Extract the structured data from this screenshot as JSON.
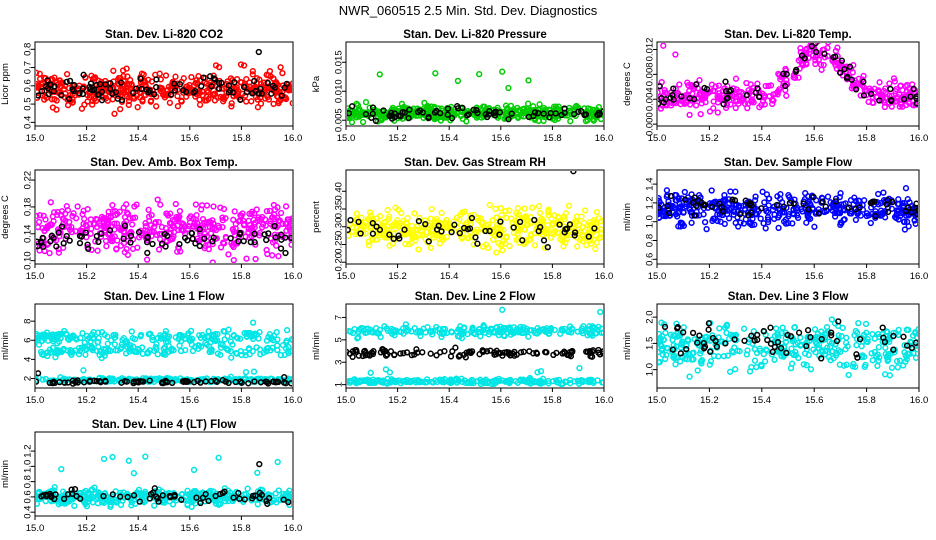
{
  "title": "NWR_060515  2.5 Min. Std. Dev. Diagnostics",
  "chart_data": [
    {
      "type": "scatter",
      "title": "Stan. Dev. Li-820 CO2",
      "ylabel": "Licor ppm",
      "xlim": [
        15.0,
        16.0
      ],
      "ylim": [
        0.38,
        0.84
      ],
      "x_ticks": [
        "15.0",
        "15.2",
        "15.4",
        "15.6",
        "15.8",
        "16.0"
      ],
      "y_ticks": [
        "0.4",
        "0.5",
        "0.6",
        "0.7",
        "0.8"
      ],
      "y_tick_values": [
        0.4,
        0.5,
        0.6,
        0.7,
        0.8
      ],
      "color": "#ff0000",
      "series": [
        {
          "name": "main",
          "center": 0.58,
          "spread": 0.07
        },
        {
          "name": "black",
          "center": 0.58,
          "spread": 0.05
        }
      ]
    },
    {
      "type": "scatter",
      "title": "Stan. Dev. Li-820 Pressure",
      "ylabel": "kPa",
      "xlim": [
        15.0,
        16.0
      ],
      "ylim": [
        0.004,
        0.0185
      ],
      "x_ticks": [
        "15.0",
        "15.2",
        "15.4",
        "15.6",
        "15.8",
        "16.0"
      ],
      "y_ticks": [
        "0.005",
        "0.010",
        "0.015"
      ],
      "y_tick_values": [
        0.005,
        0.01,
        0.015
      ],
      "color": "#00cc00",
      "series": [
        {
          "name": "main",
          "center": 0.0062,
          "spread": 0.0009
        },
        {
          "name": "black",
          "center": 0.0062,
          "spread": 0.0008
        }
      ]
    },
    {
      "type": "scatter",
      "title": "Stan. Dev. Li-820 Temp.",
      "ylabel": "degrees C",
      "xlim": [
        15.0,
        16.0
      ],
      "ylim": [
        -0.0003,
        0.0132
      ],
      "x_ticks": [
        "15.0",
        "15.2",
        "15.4",
        "15.6",
        "15.8",
        "16.0"
      ],
      "y_ticks": [
        "0.000",
        "0.004",
        "0.008",
        "0.012"
      ],
      "y_tick_values": [
        0.0,
        0.004,
        0.008,
        0.012
      ],
      "color": "#ff00ff",
      "series": [
        {
          "name": "main",
          "center": 0.0045,
          "spread": 0.0015,
          "peak": 0.0075
        },
        {
          "name": "black",
          "center": 0.0045,
          "spread": 0.0012,
          "peak": 0.0075
        }
      ]
    },
    {
      "type": "scatter",
      "title": "Stan. Dev. Amb. Box Temp.",
      "ylabel": "degrees C",
      "xlim": [
        15.0,
        16.0
      ],
      "ylim": [
        0.095,
        0.235
      ],
      "x_ticks": [
        "15.0",
        "15.2",
        "15.4",
        "15.6",
        "15.8",
        "16.0"
      ],
      "y_ticks": [
        "0.10",
        "0.14",
        "0.18",
        "0.22"
      ],
      "y_tick_values": [
        0.1,
        0.14,
        0.18,
        0.22
      ],
      "color": "#ff00ff",
      "series": [
        {
          "name": "main",
          "center": 0.148,
          "spread": 0.025
        },
        {
          "name": "black",
          "center": 0.132,
          "spread": 0.012
        }
      ]
    },
    {
      "type": "scatter",
      "title": "Stan. Dev. Gas Stream RH",
      "ylabel": "percent",
      "xlim": [
        15.0,
        16.0
      ],
      "ylim": [
        0.195,
        0.46
      ],
      "x_ticks": [
        "15.0",
        "15.2",
        "15.4",
        "15.6",
        "15.8",
        "16.0"
      ],
      "y_ticks": [
        "0.20",
        "0.25",
        "0.30",
        "0.35",
        "0.40"
      ],
      "y_tick_values": [
        0.2,
        0.25,
        0.3,
        0.35,
        0.4
      ],
      "color": "#ffff00",
      "series": [
        {
          "name": "main",
          "center": 0.295,
          "spread": 0.035
        },
        {
          "name": "black",
          "center": 0.29,
          "spread": 0.025
        }
      ]
    },
    {
      "type": "scatter",
      "title": "Stan. Dev. Sample Flow",
      "ylabel": "ml/min",
      "xlim": [
        15.0,
        16.0
      ],
      "ylim": [
        0.55,
        1.55
      ],
      "x_ticks": [
        "15.0",
        "15.2",
        "15.4",
        "15.6",
        "15.8",
        "16.0"
      ],
      "y_ticks": [
        "0.6",
        "0.8",
        "1.0",
        "1.2",
        "1.4"
      ],
      "y_tick_values": [
        0.6,
        0.8,
        1.0,
        1.2,
        1.4
      ],
      "color": "#0000ff",
      "series": [
        {
          "name": "main",
          "center": 1.13,
          "spread": 0.12
        },
        {
          "name": "black",
          "center": 1.18,
          "spread": 0.08
        }
      ]
    },
    {
      "type": "scatter",
      "title": "Stan. Dev. Line 1 Flow",
      "ylabel": "ml/min",
      "xlim": [
        15.0,
        16.0
      ],
      "ylim": [
        1.0,
        9.8
      ],
      "x_ticks": [
        "15.0",
        "15.2",
        "15.4",
        "15.6",
        "15.8",
        "16.0"
      ],
      "y_ticks": [
        "2",
        "4",
        "6",
        "8"
      ],
      "y_tick_values": [
        2,
        4,
        6,
        8
      ],
      "color": "#00e5e5",
      "series": [
        {
          "name": "band-high",
          "center": 6.3,
          "spread": 0.45
        },
        {
          "name": "band-mid",
          "center": 4.9,
          "spread": 0.45
        },
        {
          "name": "band-low",
          "center": 1.85,
          "spread": 0.15
        },
        {
          "name": "black",
          "center": 1.65,
          "spread": 0.12
        }
      ]
    },
    {
      "type": "scatter",
      "title": "Stan. Dev. Line 2 Flow",
      "ylabel": "ml/min",
      "xlim": [
        15.0,
        16.0
      ],
      "ylim": [
        0.7,
        8.2
      ],
      "x_ticks": [
        "15.0",
        "15.2",
        "15.4",
        "15.6",
        "15.8",
        "16.0"
      ],
      "y_ticks": [
        "1",
        "3",
        "5",
        "7"
      ],
      "y_tick_values": [
        1,
        3,
        5,
        7
      ],
      "color": "#00e5e5",
      "series": [
        {
          "name": "band-high",
          "center": 5.8,
          "spread": 0.35
        },
        {
          "name": "band-low",
          "center": 1.3,
          "spread": 0.15
        },
        {
          "name": "black",
          "center": 3.8,
          "spread": 0.25
        }
      ]
    },
    {
      "type": "scatter",
      "title": "Stan. Dev. Line 3 Flow",
      "ylabel": "ml/min",
      "xlim": [
        15.0,
        16.0
      ],
      "ylim": [
        0.65,
        2.25
      ],
      "x_ticks": [
        "15.0",
        "15.2",
        "15.4",
        "15.6",
        "15.8",
        "16.0"
      ],
      "y_ticks": [
        "1.0",
        "1.5",
        "2.0"
      ],
      "y_tick_values": [
        1.0,
        1.5,
        2.0
      ],
      "color": "#00e5e5",
      "series": [
        {
          "name": "main",
          "center": 1.45,
          "spread": 0.32
        },
        {
          "name": "black",
          "center": 1.55,
          "spread": 0.25
        }
      ]
    },
    {
      "type": "scatter",
      "title": "Stan. Dev. Line 4 (LT) Flow",
      "ylabel": "ml/min",
      "xlim": [
        15.0,
        16.0
      ],
      "ylim": [
        0.35,
        1.45
      ],
      "x_ticks": [
        "15.0",
        "15.2",
        "15.4",
        "15.6",
        "15.8",
        "16.0"
      ],
      "y_ticks": [
        "0.4",
        "0.6",
        "0.8",
        "1.0",
        "1.2"
      ],
      "y_tick_values": [
        0.4,
        0.6,
        0.8,
        1.0,
        1.2
      ],
      "color": "#00e5e5",
      "series": [
        {
          "name": "main",
          "center": 0.6,
          "spread": 0.07
        },
        {
          "name": "black",
          "center": 0.6,
          "spread": 0.06
        }
      ]
    }
  ]
}
